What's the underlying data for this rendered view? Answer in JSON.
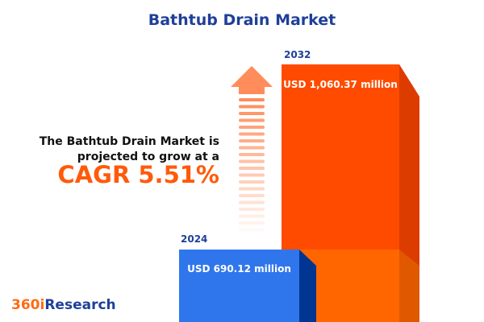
{
  "title": "Bathtub Drain Market",
  "description": {
    "line1": "The Bathtub Drain Market is",
    "line2": "projected to grow at a",
    "cagr": "CAGR 5.51%"
  },
  "logo": {
    "part1": "360i",
    "part2": "Research"
  },
  "colors": {
    "bar_2024": "#2f76ec",
    "bar_2032": "#ff4b00",
    "title": "#1f3f99",
    "accent": "#ff5a0a"
  },
  "chart_data": {
    "type": "bar",
    "categories": [
      "2024",
      "2032"
    ],
    "values": [
      690.12,
      1060.37
    ],
    "unit": "USD million",
    "data_labels": [
      "USD 690.12 million",
      "USD 1,060.37 million"
    ],
    "cagr": 5.51
  }
}
